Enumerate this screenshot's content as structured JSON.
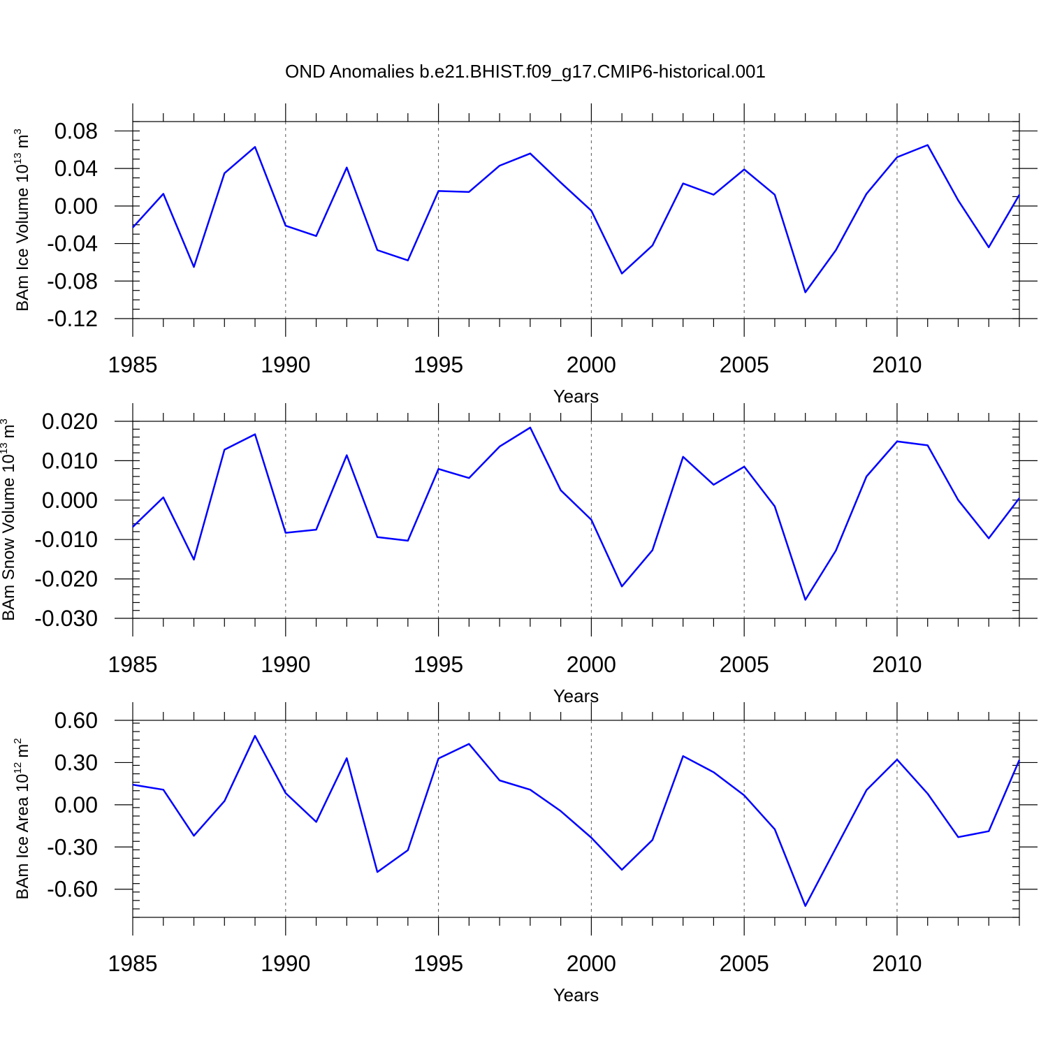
{
  "title": "OND Anomalies b.e21.BHIST.f09_g17.CMIP6-historical.001",
  "chart_data": [
    {
      "type": "line",
      "ylabel": "BAm Ice Volume 10",
      "ylabel_exponent": "13",
      "ylabel_unit": "m",
      "ylabel_unit_exponent": "3",
      "xlabel": "Years",
      "xlim": [
        1985,
        2014
      ],
      "ylim": [
        -0.12,
        0.09
      ],
      "x_ticks": [
        1985,
        1990,
        1995,
        2000,
        2005,
        2010
      ],
      "x_tick_labels": [
        "1985",
        "1990",
        "1995",
        "2000",
        "2005",
        "2010"
      ],
      "y_ticks": [
        -0.12,
        -0.08,
        -0.04,
        0.0,
        0.04,
        0.08
      ],
      "y_tick_labels": [
        "-0.12",
        "-0.08",
        "-0.04",
        "0.00",
        "0.04",
        "0.08"
      ],
      "y_minor_step": 0.01,
      "grid": "vertical dashed at major x ticks",
      "series": [
        {
          "color": "#0000ff",
          "x": [
            1985,
            1986,
            1987,
            1988,
            1989,
            1990,
            1991,
            1992,
            1993,
            1994,
            1995,
            1996,
            1997,
            1998,
            1999,
            2000,
            2001,
            2002,
            2003,
            2004,
            2005,
            2006,
            2007,
            2008,
            2009,
            2010,
            2011,
            2012,
            2013,
            2014
          ],
          "values": [
            -0.023,
            0.013,
            -0.065,
            0.035,
            0.063,
            -0.021,
            -0.032,
            0.041,
            -0.047,
            -0.058,
            0.016,
            0.015,
            0.043,
            0.056,
            0.025,
            -0.005,
            -0.072,
            -0.042,
            0.024,
            0.012,
            0.039,
            0.012,
            -0.092,
            -0.047,
            0.013,
            0.052,
            0.065,
            0.006,
            -0.044,
            0.012
          ]
        }
      ]
    },
    {
      "type": "line",
      "ylabel": "BAm Snow Volume 10",
      "ylabel_exponent": "13",
      "ylabel_unit": "m",
      "ylabel_unit_exponent": "3",
      "xlabel": "Years",
      "xlim": [
        1985,
        2014
      ],
      "ylim": [
        -0.03,
        0.02
      ],
      "x_ticks": [
        1985,
        1990,
        1995,
        2000,
        2005,
        2010
      ],
      "x_tick_labels": [
        "1985",
        "1990",
        "1995",
        "2000",
        "2005",
        "2010"
      ],
      "y_ticks": [
        -0.03,
        -0.02,
        -0.01,
        0.0,
        0.01,
        0.02
      ],
      "y_tick_labels": [
        "-0.030",
        "-0.020",
        "-0.010",
        "0.000",
        "0.010",
        "0.020"
      ],
      "y_minor_step": 0.002,
      "grid": "vertical dashed at major x ticks",
      "series": [
        {
          "color": "#0000ff",
          "x": [
            1985,
            1986,
            1987,
            1988,
            1989,
            1990,
            1991,
            1992,
            1993,
            1994,
            1995,
            1996,
            1997,
            1998,
            1999,
            2000,
            2001,
            2002,
            2003,
            2004,
            2005,
            2006,
            2007,
            2008,
            2009,
            2010,
            2011,
            2012,
            2013,
            2014
          ],
          "values": [
            -0.0068,
            0.0007,
            -0.0151,
            0.0128,
            0.0167,
            -0.0083,
            -0.0075,
            0.0114,
            -0.0094,
            -0.0103,
            0.0079,
            0.0056,
            0.0136,
            0.0184,
            0.0025,
            -0.005,
            -0.0219,
            -0.0127,
            0.011,
            0.0039,
            0.0085,
            -0.0016,
            -0.0253,
            -0.0128,
            0.006,
            0.0149,
            0.0139,
            0.0,
            -0.0097,
            0.0005
          ]
        }
      ]
    },
    {
      "type": "line",
      "ylabel": "BAm Ice Area 10",
      "ylabel_exponent": "12",
      "ylabel_unit": "m",
      "ylabel_unit_exponent": "2",
      "xlabel": "Years",
      "xlim": [
        1985,
        2014
      ],
      "ylim": [
        -0.8,
        0.6
      ],
      "x_ticks": [
        1985,
        1990,
        1995,
        2000,
        2005,
        2010
      ],
      "x_tick_labels": [
        "1985",
        "1990",
        "1995",
        "2000",
        "2005",
        "2010"
      ],
      "y_ticks": [
        -0.6,
        -0.3,
        0.0,
        0.3,
        0.6
      ],
      "y_tick_labels": [
        "-0.60",
        "-0.30",
        "0.00",
        "0.30",
        "0.60"
      ],
      "y_minor_step": 0.06,
      "grid": "vertical dashed at major x ticks",
      "series": [
        {
          "color": "#0000ff",
          "x": [
            1985,
            1986,
            1987,
            1988,
            1989,
            1990,
            1991,
            1992,
            1993,
            1994,
            1995,
            1996,
            1997,
            1998,
            1999,
            2000,
            2001,
            2002,
            2003,
            2004,
            2005,
            2006,
            2007,
            2008,
            2009,
            2010,
            2011,
            2012,
            2013,
            2014
          ],
          "values": [
            0.143,
            0.107,
            -0.22,
            0.026,
            0.49,
            0.083,
            -0.122,
            0.331,
            -0.478,
            -0.323,
            0.329,
            0.432,
            0.173,
            0.107,
            -0.045,
            -0.234,
            -0.462,
            -0.25,
            0.346,
            0.231,
            0.067,
            -0.174,
            -0.719,
            -0.307,
            0.104,
            0.321,
            0.079,
            -0.23,
            -0.188,
            0.318
          ]
        }
      ]
    }
  ]
}
